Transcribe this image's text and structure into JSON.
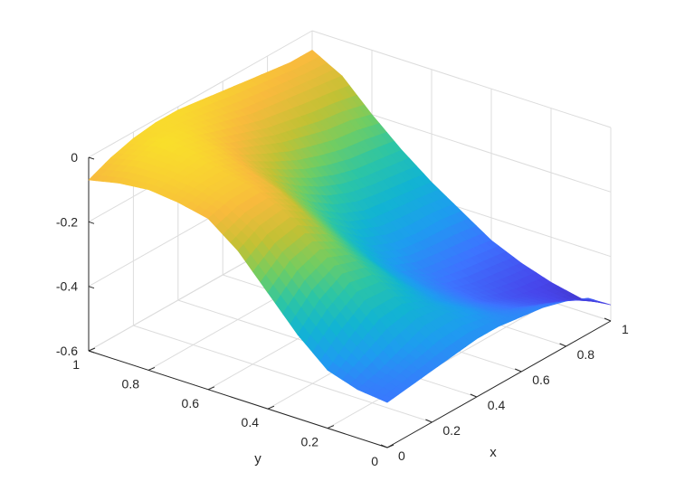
{
  "chart_data": {
    "type": "surface",
    "title": "",
    "xlabel": "x",
    "ylabel": "y",
    "zlabel": "",
    "xlim": [
      0,
      1
    ],
    "ylim": [
      0,
      1
    ],
    "zlim": [
      -0.6,
      0
    ],
    "grid": true,
    "colormap": "parula",
    "colormap_stops": [
      "#3e26a8",
      "#4746eb",
      "#3d74ff",
      "#1e9cf0",
      "#12b4d2",
      "#2cc5a5",
      "#71cd62",
      "#c2c134",
      "#f8ba3d",
      "#f9e02a"
    ],
    "x_ticks": [
      "0",
      "0.2",
      "0.4",
      "0.6",
      "0.8",
      "1"
    ],
    "y_ticks": [
      "0",
      "0.2",
      "0.4",
      "0.6",
      "0.8",
      "1"
    ],
    "z_ticks": [
      "0",
      "-0.2",
      "-0.4",
      "-0.6"
    ],
    "x": [
      0,
      0.1,
      0.2,
      0.3,
      0.4,
      0.5,
      0.6,
      0.7,
      0.8,
      0.9,
      1.0
    ],
    "y": [
      0,
      0.1,
      0.2,
      0.3,
      0.4,
      0.5,
      0.6,
      0.7,
      0.8,
      0.9,
      1.0
    ],
    "z": [
      [
        -0.46,
        -0.45,
        -0.44,
        -0.43,
        -0.42,
        -0.42,
        -0.43,
        -0.44,
        -0.46,
        -0.49,
        -0.55
      ],
      [
        -0.45,
        -0.43,
        -0.4,
        -0.37,
        -0.37,
        -0.4,
        -0.44,
        -0.47,
        -0.5,
        -0.53,
        -0.56
      ],
      [
        -0.42,
        -0.36,
        -0.31,
        -0.31,
        -0.35,
        -0.4,
        -0.44,
        -0.48,
        -0.51,
        -0.53,
        -0.54
      ],
      [
        -0.34,
        -0.27,
        -0.23,
        -0.25,
        -0.31,
        -0.38,
        -0.43,
        -0.47,
        -0.49,
        -0.5,
        -0.51
      ],
      [
        -0.24,
        -0.18,
        -0.16,
        -0.2,
        -0.27,
        -0.35,
        -0.41,
        -0.44,
        -0.45,
        -0.46,
        -0.47
      ],
      [
        -0.14,
        -0.1,
        -0.09,
        -0.14,
        -0.22,
        -0.3,
        -0.36,
        -0.39,
        -0.4,
        -0.4,
        -0.41
      ],
      [
        -0.07,
        -0.05,
        -0.05,
        -0.09,
        -0.17,
        -0.24,
        -0.29,
        -0.32,
        -0.33,
        -0.34,
        -0.35
      ],
      [
        -0.05,
        -0.03,
        -0.03,
        -0.06,
        -0.12,
        -0.17,
        -0.21,
        -0.24,
        -0.26,
        -0.27,
        -0.28
      ],
      [
        -0.04,
        -0.02,
        -0.01,
        -0.03,
        -0.07,
        -0.1,
        -0.13,
        -0.15,
        -0.17,
        -0.18,
        -0.2
      ],
      [
        -0.05,
        -0.02,
        0.0,
        -0.01,
        -0.03,
        -0.05,
        -0.07,
        -0.08,
        -0.09,
        -0.1,
        -0.11
      ],
      [
        -0.07,
        -0.04,
        -0.02,
        -0.01,
        -0.01,
        -0.02,
        -0.03,
        -0.04,
        -0.05,
        -0.06,
        -0.06
      ]
    ]
  }
}
